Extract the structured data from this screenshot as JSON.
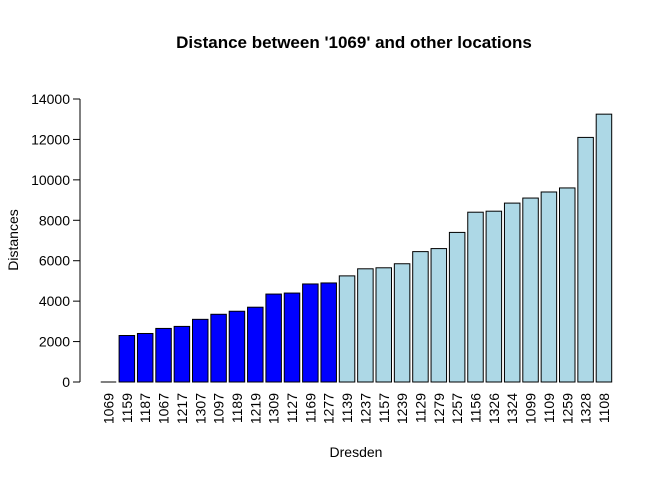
{
  "chart_data": {
    "type": "bar",
    "title": "Distance between '1069' and other locations",
    "xlabel": "Dresden",
    "ylabel": "Distances",
    "ylim": [
      0,
      14000
    ],
    "yticks": [
      0,
      2000,
      4000,
      6000,
      8000,
      10000,
      12000,
      14000
    ],
    "grid": false,
    "legend": "none",
    "categories": [
      "1069",
      "1159",
      "1187",
      "1067",
      "1217",
      "1307",
      "1097",
      "1189",
      "1219",
      "1309",
      "1127",
      "1169",
      "1277",
      "1139",
      "1237",
      "1157",
      "1239",
      "1129",
      "1279",
      "1257",
      "1156",
      "1326",
      "1324",
      "1099",
      "1109",
      "1259",
      "1328",
      "1108"
    ],
    "values": [
      0,
      2300,
      2400,
      2650,
      2750,
      3100,
      3350,
      3500,
      3700,
      4350,
      4400,
      4850,
      4900,
      5250,
      5600,
      5650,
      5850,
      6450,
      6600,
      7400,
      8400,
      8450,
      8850,
      9100,
      9400,
      9600,
      12100,
      13250
    ],
    "colors": [
      "#0000FF",
      "#0000FF",
      "#0000FF",
      "#0000FF",
      "#0000FF",
      "#0000FF",
      "#0000FF",
      "#0000FF",
      "#0000FF",
      "#0000FF",
      "#0000FF",
      "#0000FF",
      "#0000FF",
      "#ADD8E6",
      "#ADD8E6",
      "#ADD8E6",
      "#ADD8E6",
      "#ADD8E6",
      "#ADD8E6",
      "#ADD8E6",
      "#ADD8E6",
      "#ADD8E6",
      "#ADD8E6",
      "#ADD8E6",
      "#ADD8E6",
      "#ADD8E6",
      "#ADD8E6",
      "#ADD8E6"
    ]
  }
}
